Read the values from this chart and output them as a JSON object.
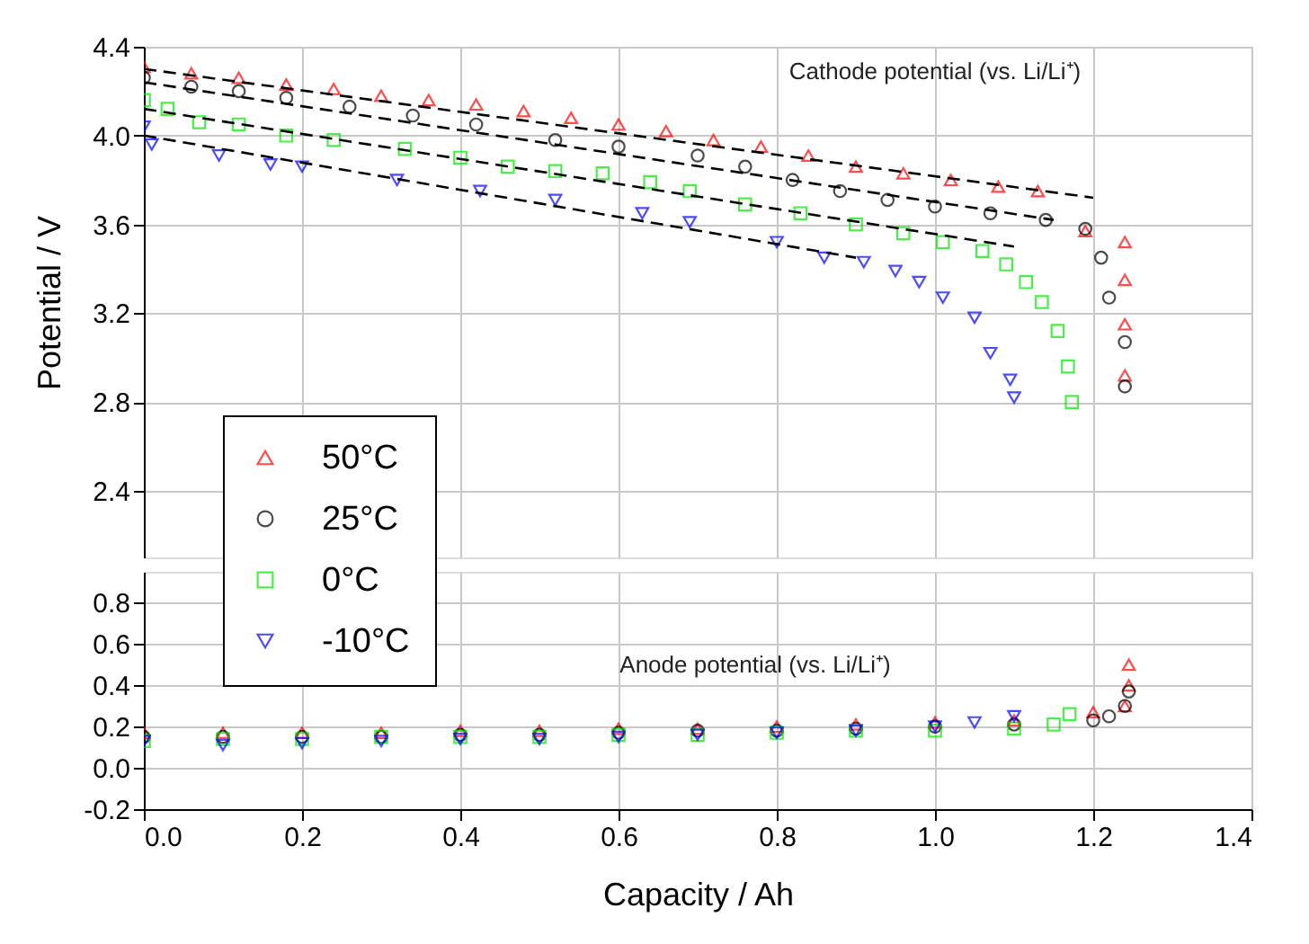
{
  "chart_data": [
    {
      "type": "scatter",
      "ylabel": "Potential / V",
      "xlim": [
        0,
        1.4
      ],
      "xticks": [
        0,
        0.2,
        0.4,
        0.6,
        0.8,
        1.0,
        1.2,
        1.4
      ],
      "ylim": [
        2.1,
        4.4
      ],
      "yticks": [
        {
          "value": 2.4,
          "label": "2.4"
        },
        {
          "value": 2.8,
          "label": "2.8"
        },
        {
          "value": 3.2,
          "label": "3.2"
        },
        {
          "value": 3.6,
          "label": "3.6"
        },
        {
          "value": 4.0,
          "label": "4.0"
        },
        {
          "value": 4.4,
          "label": "4.4"
        }
      ],
      "tick_labels": "y",
      "grid": true,
      "legend": "bottom left",
      "annotations": [
        "Cathode potential (vs. Li/Li⁺)"
      ],
      "series": [
        {
          "name": "50°C",
          "color": "#ff0000",
          "marker": "triangle",
          "x": [
            0,
            0.06,
            0.12,
            0.18,
            0.24,
            0.3,
            0.36,
            0.42,
            0.48,
            0.54,
            0.6,
            0.66,
            0.72,
            0.78,
            0.84,
            0.9,
            0.96,
            1.02,
            1.08,
            1.13,
            1.19,
            1.24,
            1.24,
            1.24,
            1.24
          ],
          "values": [
            4.31,
            4.28,
            4.26,
            4.23,
            4.21,
            4.18,
            4.16,
            4.14,
            4.11,
            4.08,
            4.05,
            4.02,
            3.98,
            3.95,
            3.91,
            3.86,
            3.83,
            3.8,
            3.77,
            3.75,
            3.57,
            3.52,
            3.35,
            3.15,
            2.92
          ]
        },
        {
          "name": "25°C",
          "color": "#000000",
          "marker": "circle",
          "x": [
            0,
            0.06,
            0.12,
            0.18,
            0.26,
            0.34,
            0.42,
            0.52,
            0.6,
            0.7,
            0.76,
            0.82,
            0.88,
            0.94,
            1.0,
            1.07,
            1.14,
            1.19,
            1.21,
            1.22,
            1.24,
            1.24
          ],
          "values": [
            4.26,
            4.22,
            4.2,
            4.17,
            4.13,
            4.09,
            4.05,
            3.98,
            3.95,
            3.91,
            3.86,
            3.8,
            3.75,
            3.71,
            3.68,
            3.65,
            3.62,
            3.58,
            3.45,
            3.27,
            3.07,
            2.87
          ]
        },
        {
          "name": "0°C",
          "color": "#00e600",
          "marker": "square",
          "x": [
            0,
            0.03,
            0.07,
            0.12,
            0.18,
            0.24,
            0.33,
            0.4,
            0.46,
            0.52,
            0.58,
            0.64,
            0.69,
            0.76,
            0.83,
            0.9,
            0.96,
            1.01,
            1.06,
            1.09,
            1.115,
            1.135,
            1.155,
            1.168,
            1.173
          ],
          "values": [
            4.16,
            4.12,
            4.06,
            4.05,
            4.0,
            3.98,
            3.94,
            3.9,
            3.86,
            3.84,
            3.83,
            3.79,
            3.75,
            3.69,
            3.65,
            3.6,
            3.56,
            3.52,
            3.48,
            3.42,
            3.34,
            3.25,
            3.12,
            2.96,
            2.8
          ]
        },
        {
          "name": "-10°C",
          "color": "#0000ff",
          "marker": "triangle_down",
          "x": [
            0,
            0.01,
            0.095,
            0.16,
            0.2,
            0.32,
            0.425,
            0.52,
            0.63,
            0.69,
            0.8,
            0.86,
            0.91,
            0.95,
            0.98,
            1.01,
            1.05,
            1.07,
            1.095,
            1.1
          ],
          "values": [
            4.04,
            3.96,
            3.91,
            3.87,
            3.86,
            3.8,
            3.75,
            3.71,
            3.65,
            3.61,
            3.52,
            3.45,
            3.43,
            3.39,
            3.34,
            3.27,
            3.18,
            3.02,
            2.9,
            2.82
          ]
        },
        {
          "type": "line",
          "color": "#000000",
          "line_style": "dashed",
          "x": [
            0,
            1.2
          ],
          "values": [
            4.3,
            3.72
          ]
        },
        {
          "type": "line",
          "color": "#000000",
          "line_style": "dashed",
          "x": [
            0,
            1.15
          ],
          "values": [
            4.24,
            3.62
          ]
        },
        {
          "type": "line",
          "color": "#000000",
          "line_style": "dashed",
          "x": [
            0,
            1.1
          ],
          "values": [
            4.12,
            3.5
          ]
        },
        {
          "type": "line",
          "color": "#000000",
          "line_style": "dashed",
          "x": [
            0,
            0.9
          ],
          "values": [
            4.0,
            3.45
          ]
        }
      ]
    },
    {
      "type": "scatter",
      "xlabel": "Capacity / Ah",
      "xlim": [
        0,
        1.4
      ],
      "xticks": [
        {
          "value": 0,
          "label": "0.0"
        },
        {
          "value": 0.2,
          "label": "0.2"
        },
        {
          "value": 0.4,
          "label": "0.4"
        },
        {
          "value": 0.6,
          "label": "0.6"
        },
        {
          "value": 0.8,
          "label": "0.8"
        },
        {
          "value": 1.0,
          "label": "1.0"
        },
        {
          "value": 1.2,
          "label": "1.2"
        },
        {
          "value": 1.4,
          "label": "1.4"
        }
      ],
      "ylim": [
        -0.2,
        0.95
      ],
      "yticks": [
        -0.2,
        {
          "value": 0,
          "label": "0.0"
        },
        0.2,
        0.4,
        0.6,
        0.8
      ],
      "grid": true,
      "annotations": [
        "Anode potential (vs. Li/Li⁺)"
      ],
      "series": [
        {
          "color": "#ff0000",
          "marker": "triangle",
          "x": [
            0,
            0.1,
            0.2,
            0.3,
            0.4,
            0.5,
            0.6,
            0.7,
            0.8,
            0.9,
            1.0,
            1.1,
            1.2,
            1.24,
            1.245,
            1.245
          ],
          "values": [
            0.17,
            0.17,
            0.17,
            0.17,
            0.18,
            0.18,
            0.19,
            0.19,
            0.2,
            0.21,
            0.22,
            0.23,
            0.27,
            0.3,
            0.4,
            0.5
          ]
        },
        {
          "color": "#000000",
          "marker": "circle",
          "x": [
            0,
            0.1,
            0.2,
            0.3,
            0.4,
            0.5,
            0.6,
            0.7,
            0.8,
            0.9,
            1.0,
            1.1,
            1.2,
            1.22,
            1.24,
            1.245
          ],
          "values": [
            0.15,
            0.15,
            0.15,
            0.15,
            0.16,
            0.16,
            0.17,
            0.18,
            0.18,
            0.19,
            0.2,
            0.21,
            0.23,
            0.25,
            0.3,
            0.37
          ]
        },
        {
          "color": "#00e600",
          "marker": "square",
          "x": [
            0,
            0.1,
            0.2,
            0.3,
            0.4,
            0.5,
            0.6,
            0.7,
            0.8,
            0.9,
            1.0,
            1.1,
            1.15,
            1.17
          ],
          "values": [
            0.13,
            0.14,
            0.14,
            0.15,
            0.15,
            0.15,
            0.16,
            0.16,
            0.17,
            0.18,
            0.18,
            0.19,
            0.21,
            0.26
          ]
        },
        {
          "color": "#0000ff",
          "marker": "triangle_down",
          "x": [
            0,
            0.1,
            0.2,
            0.3,
            0.4,
            0.5,
            0.6,
            0.7,
            0.8,
            0.9,
            1.0,
            1.05,
            1.1
          ],
          "values": [
            0.13,
            0.11,
            0.12,
            0.13,
            0.14,
            0.14,
            0.15,
            0.16,
            0.17,
            0.18,
            0.2,
            0.22,
            0.25
          ]
        }
      ]
    }
  ]
}
